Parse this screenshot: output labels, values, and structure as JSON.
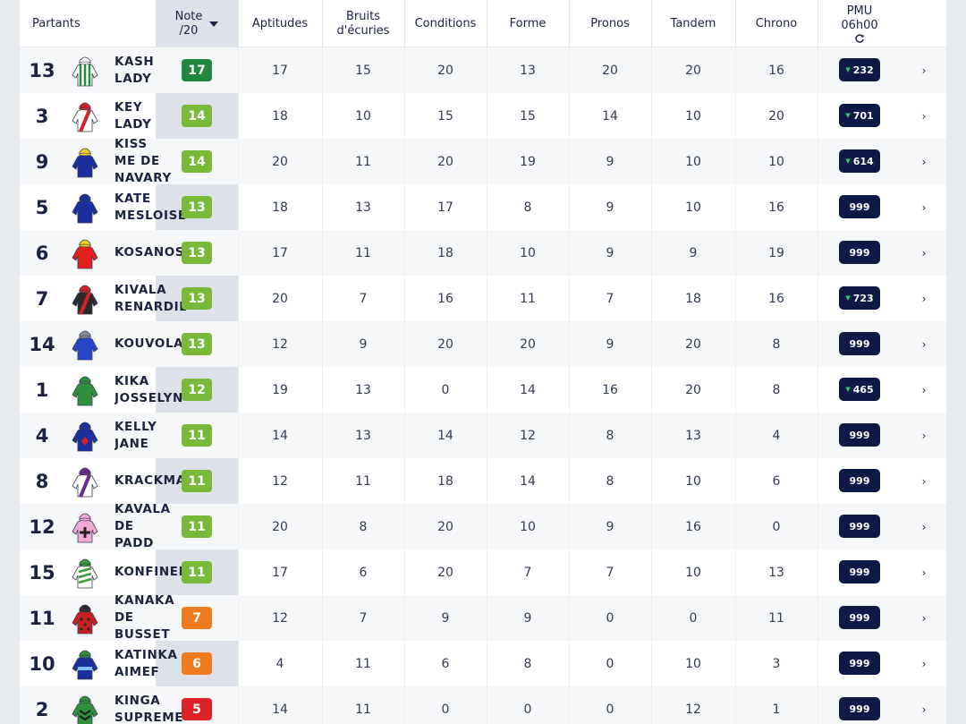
{
  "header": {
    "partants": "Partants",
    "note_l1": "Note",
    "note_l2": "/20",
    "columns": [
      "Aptitudes",
      "Bruits\nd'écuries",
      "Conditions",
      "Forme",
      "Pronos",
      "Tandem",
      "Chrono"
    ],
    "pmu_l1": "PMU",
    "pmu_l2": "06h00",
    "sort_icon": "caret-down-icon",
    "refresh_icon": "refresh-icon"
  },
  "colors": {
    "note_dark_green": "#21873f",
    "note_green": "#7ab83a",
    "note_orange": "#f07a1e",
    "note_red": "#de2027",
    "pmu_badge": "#0e1a45"
  },
  "rows": [
    {
      "num": "13",
      "name": "KASH\nLADY",
      "note": "17",
      "note_color": "#21873f",
      "vals": [
        "17",
        "15",
        "20",
        "13",
        "20",
        "20",
        "16"
      ],
      "pmu": "232",
      "pmu_arrow": true,
      "jockey": {
        "body": "#ffffff",
        "stripe": "#2d8a3e",
        "pattern": "vstripes",
        "cap": "#ffffff"
      }
    },
    {
      "num": "3",
      "name": "KEY\nLADY",
      "note": "14",
      "note_color": "#7ab83a",
      "vals": [
        "18",
        "10",
        "15",
        "15",
        "14",
        "10",
        "20"
      ],
      "pmu": "701",
      "pmu_arrow": true,
      "jockey": {
        "body": "#ffffff",
        "stripe": "#d42027",
        "pattern": "sash",
        "cap": "#d42027"
      }
    },
    {
      "num": "9",
      "name": "KISS\nME DE\nNAVARY",
      "note": "14",
      "note_color": "#7ab83a",
      "vals": [
        "20",
        "11",
        "20",
        "19",
        "9",
        "10",
        "10"
      ],
      "pmu": "614",
      "pmu_arrow": true,
      "jockey": {
        "body": "#1a2e9c",
        "stripe": "#f2d21b",
        "pattern": "plain",
        "cap": "#f2d21b"
      }
    },
    {
      "num": "5",
      "name": "KATE\nMESLOISE",
      "note": "13",
      "note_color": "#7ab83a",
      "vals": [
        "18",
        "13",
        "17",
        "8",
        "9",
        "10",
        "16"
      ],
      "pmu": "999",
      "pmu_arrow": false,
      "jockey": {
        "body": "#1a2e9c",
        "stripe": "#1a2e9c",
        "pattern": "plain",
        "cap": "#1a2e9c"
      }
    },
    {
      "num": "6",
      "name": "KOSANOST",
      "note": "13",
      "note_color": "#7ab83a",
      "vals": [
        "17",
        "11",
        "18",
        "10",
        "9",
        "9",
        "19"
      ],
      "pmu": "999",
      "pmu_arrow": false,
      "jockey": {
        "body": "#e3201c",
        "stripe": "#e3201c",
        "pattern": "plain",
        "cap": "#f2d21b"
      }
    },
    {
      "num": "7",
      "name": "KIVALA\nRENARDIER",
      "note": "13",
      "note_color": "#7ab83a",
      "vals": [
        "20",
        "7",
        "16",
        "11",
        "7",
        "18",
        "16"
      ],
      "pmu": "723",
      "pmu_arrow": true,
      "jockey": {
        "body": "#2a2a2a",
        "stripe": "#d42027",
        "pattern": "sash",
        "cap": "#d42027"
      }
    },
    {
      "num": "14",
      "name": "KOUVOLA",
      "note": "13",
      "note_color": "#7ab83a",
      "vals": [
        "12",
        "9",
        "20",
        "20",
        "9",
        "20",
        "8"
      ],
      "pmu": "999",
      "pmu_arrow": false,
      "jockey": {
        "body": "#2745c9",
        "stripe": "#2745c9",
        "pattern": "plain",
        "cap": "#8a8f9a"
      }
    },
    {
      "num": "1",
      "name": "KIKA\nJOSSELYN",
      "note": "12",
      "note_color": "#7ab83a",
      "vals": [
        "19",
        "13",
        "0",
        "14",
        "16",
        "20",
        "8"
      ],
      "pmu": "465",
      "pmu_arrow": true,
      "jockey": {
        "body": "#2f8f3b",
        "stripe": "#2f8f3b",
        "pattern": "plain",
        "cap": "#2f8f3b"
      }
    },
    {
      "num": "4",
      "name": "KELLY\nJANE",
      "note": "11",
      "note_color": "#7ab83a",
      "vals": [
        "14",
        "13",
        "14",
        "12",
        "8",
        "13",
        "4"
      ],
      "pmu": "999",
      "pmu_arrow": false,
      "jockey": {
        "body": "#1a2e9c",
        "stripe": "#d42027",
        "pattern": "diamond",
        "cap": "#1a2e9c"
      }
    },
    {
      "num": "8",
      "name": "KRACKMA",
      "note": "11",
      "note_color": "#7ab83a",
      "vals": [
        "12",
        "11",
        "18",
        "14",
        "8",
        "10",
        "6"
      ],
      "pmu": "999",
      "pmu_arrow": false,
      "jockey": {
        "body": "#ffffff",
        "stripe": "#6a2b8c",
        "pattern": "sash",
        "cap": "#6a2b8c"
      }
    },
    {
      "num": "12",
      "name": "KAVALA\nDE\nPADD",
      "note": "11",
      "note_color": "#7ab83a",
      "vals": [
        "20",
        "8",
        "20",
        "10",
        "9",
        "16",
        "0"
      ],
      "pmu": "999",
      "pmu_arrow": false,
      "jockey": {
        "body": "#f2a9d8",
        "stripe": "#222222",
        "pattern": "cross",
        "cap": "#f2a9d8"
      }
    },
    {
      "num": "15",
      "name": "KONFINEE",
      "note": "11",
      "note_color": "#7ab83a",
      "vals": [
        "17",
        "6",
        "20",
        "7",
        "7",
        "10",
        "13"
      ],
      "pmu": "999",
      "pmu_arrow": false,
      "jockey": {
        "body": "#ffffff",
        "stripe": "#3a9a3e",
        "pattern": "diagstripes",
        "cap": "#3a9a3e"
      }
    },
    {
      "num": "11",
      "name": "KANAKA\nDE\nBUSSET",
      "note": "7",
      "note_color": "#f07a1e",
      "vals": [
        "12",
        "7",
        "9",
        "9",
        "0",
        "0",
        "11"
      ],
      "pmu": "999",
      "pmu_arrow": false,
      "jockey": {
        "body": "#c8201c",
        "stripe": "#2a2a2a",
        "pattern": "dots",
        "cap": "#2a2a2a"
      }
    },
    {
      "num": "10",
      "name": "KATINKA\nAIMEF",
      "note": "6",
      "note_color": "#f07a1e",
      "vals": [
        "4",
        "11",
        "6",
        "8",
        "0",
        "10",
        "3"
      ],
      "pmu": "999",
      "pmu_arrow": false,
      "jockey": {
        "body": "#1a2e9c",
        "stripe": "#7fc4ef",
        "pattern": "band",
        "cap": "#2f8f3b"
      }
    },
    {
      "num": "2",
      "name": "KINGA\nSUPREME",
      "note": "5",
      "note_color": "#de2027",
      "vals": [
        "14",
        "11",
        "0",
        "0",
        "0",
        "12",
        "1"
      ],
      "pmu": "999",
      "pmu_arrow": false,
      "jockey": {
        "body": "#2f8f3b",
        "stripe": "#1a1a1a",
        "pattern": "chevrons",
        "cap": "#2f8f3b"
      }
    }
  ]
}
